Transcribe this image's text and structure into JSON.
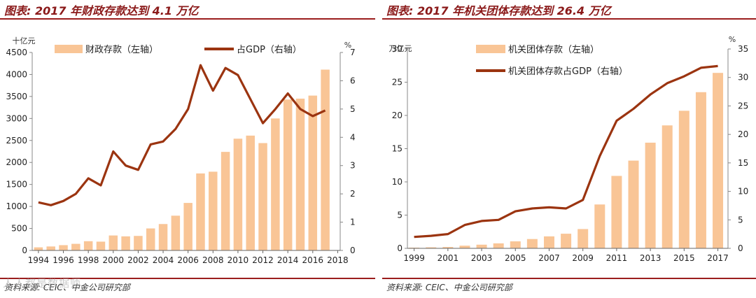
{
  "colors": {
    "bar": "#f9c596",
    "line": "#9b3410",
    "title": "#8b1a1a"
  },
  "watermark": "人人都是数据师",
  "chart_data": [
    {
      "type": "bar+line",
      "title": "图表: 2017 年财政存款达到 4.1 万亿",
      "source": "资料来源: CEIC、中金公司研究部",
      "y_left_unit": "十亿元",
      "y_right_unit": "%",
      "ylim_left": [
        0,
        4500
      ],
      "ylim_right": [
        0,
        7
      ],
      "yticks_left": [
        "0",
        "500",
        "1000",
        "1500",
        "2000",
        "2500",
        "3000",
        "3500",
        "4000",
        "4500"
      ],
      "yticks_right": [
        "0",
        "1",
        "2",
        "3",
        "4",
        "5",
        "6",
        "7"
      ],
      "x": [
        1994,
        1995,
        1996,
        1997,
        1998,
        1999,
        2000,
        2001,
        2002,
        2003,
        2004,
        2005,
        2006,
        2007,
        2008,
        2009,
        2010,
        2011,
        2012,
        2013,
        2014,
        2015,
        2016,
        2017
      ],
      "xticks": [
        "1994",
        "1996",
        "1998",
        "2000",
        "2002",
        "2004",
        "2006",
        "2008",
        "2010",
        "2012",
        "2014",
        "2016",
        "2018"
      ],
      "xtick_values": [
        1994,
        1996,
        1998,
        2000,
        2002,
        2004,
        2006,
        2008,
        2010,
        2012,
        2014,
        2016,
        2018
      ],
      "series": [
        {
          "name": "财政存款（左轴）",
          "kind": "bar",
          "axis": "left",
          "values": [
            70,
            90,
            120,
            150,
            210,
            200,
            340,
            320,
            330,
            500,
            600,
            790,
            1080,
            1750,
            1790,
            2240,
            2540,
            2610,
            2440,
            3000,
            3430,
            3450,
            3520,
            4110
          ]
        },
        {
          "name": "占GDP（右轴）",
          "kind": "line",
          "axis": "right",
          "values": [
            1.7,
            1.6,
            1.75,
            2.0,
            2.55,
            2.3,
            3.5,
            3.0,
            2.85,
            3.75,
            3.85,
            4.3,
            5.0,
            6.55,
            5.65,
            6.45,
            6.2,
            5.35,
            4.5,
            5.0,
            5.55,
            5.0,
            4.75,
            4.95
          ]
        }
      ]
    },
    {
      "type": "bar+line",
      "title": "图表: 2017 年机关团体存款达到 26.4 万亿",
      "source": "资料来源: CEIC、中金公司研究部",
      "y_left_unit": "万亿元",
      "y_right_unit": "%",
      "ylim_left": [
        0,
        30
      ],
      "ylim_right": [
        0,
        35
      ],
      "yticks_left": [
        "0",
        "5",
        "10",
        "15",
        "20",
        "25",
        "30"
      ],
      "yticks_right": [
        "0",
        "5",
        "10",
        "15",
        "20",
        "25",
        "30",
        "35"
      ],
      "x": [
        1999,
        2000,
        2001,
        2002,
        2003,
        2004,
        2005,
        2006,
        2007,
        2008,
        2009,
        2010,
        2011,
        2012,
        2013,
        2014,
        2015,
        2016,
        2017
      ],
      "xticks": [
        "1999",
        "2001",
        "2003",
        "2005",
        "2007",
        "2009",
        "2011",
        "2013",
        "2015",
        "2017"
      ],
      "xtick_values": [
        1999,
        2001,
        2003,
        2005,
        2007,
        2009,
        2011,
        2013,
        2015,
        2017
      ],
      "series": [
        {
          "name": "机关团体存款（左轴）",
          "kind": "bar",
          "axis": "left",
          "values": [
            0.1,
            0.15,
            0.2,
            0.4,
            0.55,
            0.75,
            1.05,
            1.4,
            1.8,
            2.2,
            2.9,
            6.6,
            10.9,
            13.2,
            15.9,
            18.5,
            20.7,
            23.5,
            26.4
          ]
        },
        {
          "name": "机关团体存款占GDP（右轴）",
          "kind": "line",
          "axis": "right",
          "values": [
            2.0,
            2.2,
            2.5,
            4.1,
            4.8,
            5.0,
            6.5,
            7.0,
            7.2,
            7.0,
            8.5,
            16.2,
            22.4,
            24.5,
            27.0,
            29.0,
            30.2,
            31.7,
            32.0
          ]
        }
      ]
    }
  ]
}
